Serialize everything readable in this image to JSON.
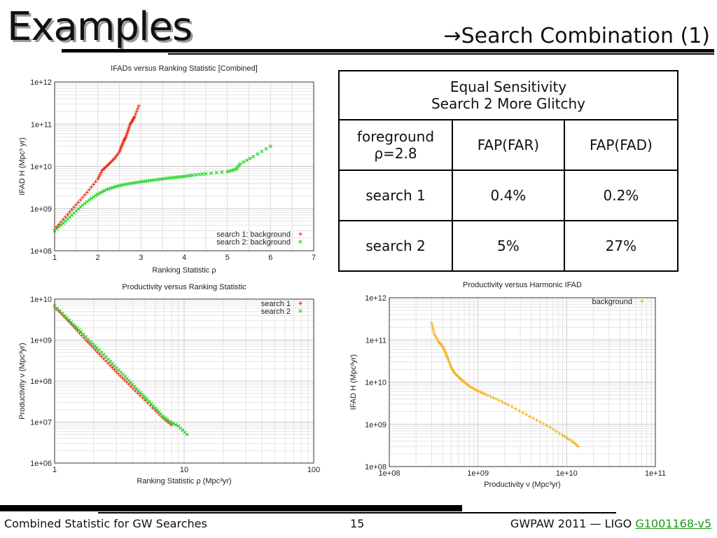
{
  "header": {
    "title": "Examples",
    "subtitle": "→Search Combination (1)"
  },
  "table": {
    "heading_line1": "Equal Sensitivity",
    "heading_line2": "Search 2 More Glitchy",
    "row_header_line1": "foreground",
    "row_header_line2": "ρ=2.8",
    "col1": "FAP(FAR)",
    "col2": "FAP(FAD)",
    "rows": [
      {
        "label": "search 1",
        "far": "0.4%",
        "fad": "0.2%"
      },
      {
        "label": "search 2",
        "far": "5%",
        "fad": "27%"
      }
    ]
  },
  "footer": {
    "left": "Combined Statistic for GW Searches",
    "page": "15",
    "right": "GWPAW 2011 — LIGO ",
    "link": "G1001168-v5"
  },
  "colors": {
    "search1": "#e8321e",
    "search2": "#22d422",
    "background": "#f5b11a"
  },
  "chart_data": [
    {
      "type": "scatter",
      "title": "IFADs versus Ranking Statistic [Combined]",
      "xlabel": "Ranking Statistic ρ",
      "ylabel": "IFAD H (Mpc³ yr)",
      "xlim": [
        1,
        7
      ],
      "ylim": [
        100000000.0,
        1000000000000.0
      ],
      "yscale": "log",
      "grid": true,
      "legend": "bottom-right",
      "x_ticks": [
        "1",
        "2",
        "3",
        "4",
        "5",
        "6",
        "7"
      ],
      "y_ticks": [
        "1e+08",
        "1e+09",
        "1e+10",
        "1e+11",
        "1e+12"
      ],
      "series": [
        {
          "name": "search 1: background",
          "marker": "+",
          "x": [
            1.0,
            1.2,
            1.4,
            1.6,
            1.8,
            2.0,
            2.1,
            2.2,
            2.3,
            2.4,
            2.5,
            2.55,
            2.6,
            2.65,
            2.7,
            2.75,
            2.8,
            2.85,
            2.95
          ],
          "y": [
            320000000.0,
            550000000.0,
            950000000.0,
            1600000000.0,
            2800000000.0,
            5000000000.0,
            8000000000.0,
            10000000000.0,
            12500000000.0,
            16000000000.0,
            22000000000.0,
            30000000000.0,
            40000000000.0,
            50000000000.0,
            70000000000.0,
            100000000000.0,
            120000000000.0,
            150000000000.0,
            270000000000.0
          ]
        },
        {
          "name": "search 2: background",
          "marker": "x",
          "x": [
            1.0,
            1.2,
            1.4,
            1.6,
            1.8,
            2.0,
            2.2,
            2.4,
            2.6,
            2.8,
            3.0,
            3.2,
            3.4,
            3.6,
            3.8,
            4.0,
            4.2,
            4.5,
            5.0,
            5.2,
            5.3,
            5.6,
            6.0
          ],
          "y": [
            300000000.0,
            450000000.0,
            700000000.0,
            1100000000.0,
            1600000000.0,
            2200000000.0,
            2800000000.0,
            3300000000.0,
            3700000000.0,
            4000000000.0,
            4300000000.0,
            4600000000.0,
            4900000000.0,
            5200000000.0,
            5500000000.0,
            5800000000.0,
            6200000000.0,
            6700000000.0,
            7500000000.0,
            8500000000.0,
            11500000000.0,
            17000000000.0,
            30000000000.0
          ]
        }
      ]
    },
    {
      "type": "scatter",
      "title": "Productivity versus Ranking Statistic",
      "xlabel": "Ranking Statistic ρ (Mpc³yr)",
      "ylabel": "Productivity ν (Mpc³yr)",
      "xlim": [
        1,
        100
      ],
      "ylim": [
        1000000.0,
        10000000000.0
      ],
      "xscale": "log",
      "yscale": "log",
      "grid": true,
      "legend": "top-right",
      "x_ticks": [
        "1",
        "10",
        "100"
      ],
      "y_ticks": [
        "1e+06",
        "1e+07",
        "1e+08",
        "1e+09",
        "1e+10"
      ],
      "series": [
        {
          "name": "search 1",
          "marker": "+",
          "x": [
            1.0,
            1.15,
            1.3,
            1.5,
            1.75,
            2.0,
            2.3,
            2.7,
            3.1,
            3.6,
            4.2,
            5.0,
            6.0,
            7.0,
            8.0
          ],
          "y": [
            6500000000.0,
            4200000000.0,
            2800000000.0,
            1700000000.0,
            1000000000.0,
            650000000.0,
            400000000.0,
            240000000.0,
            150000000.0,
            95000000.0,
            58000000.0,
            34000000.0,
            19000000.0,
            12000000.0,
            8500000.0
          ]
        },
        {
          "name": "search 2",
          "marker": "x",
          "x": [
            1.0,
            1.2,
            1.4,
            1.6,
            1.9,
            2.2,
            2.6,
            3.0,
            3.5,
            4.0,
            4.6,
            5.2,
            6.0,
            6.8,
            7.5,
            9.0,
            10.5
          ],
          "y": [
            6800000000.0,
            3900000000.0,
            2400000000.0,
            1600000000.0,
            900000000.0,
            580000000.0,
            340000000.0,
            210000000.0,
            130000000.0,
            82000000.0,
            52000000.0,
            35000000.0,
            22000000.0,
            14000000.0,
            11000000.0,
            8000000.0,
            5000000.0
          ]
        }
      ]
    },
    {
      "type": "scatter",
      "title": "Productivity versus Harmonic IFAD",
      "xlabel": "Productivity ν (Mpc³yr)",
      "ylabel": "IFAD H (Mpc³yr)",
      "xlim": [
        100000000.0,
        100000000000.0
      ],
      "ylim": [
        100000000.0,
        1000000000000.0
      ],
      "xscale": "log",
      "yscale": "log",
      "grid": true,
      "legend": "top-right",
      "x_ticks": [
        "1e+08",
        "1e+09",
        "1e+10",
        "1e+11"
      ],
      "y_ticks": [
        "1e+08",
        "1e+09",
        "1e+10",
        "1e+11",
        "1e+12"
      ],
      "series": [
        {
          "name": "background",
          "marker": "+",
          "x": [
            300000000.0,
            320000000.0,
            360000000.0,
            400000000.0,
            430000000.0,
            460000000.0,
            500000000.0,
            550000000.0,
            620000000.0,
            700000000.0,
            800000000.0,
            950000000.0,
            1200000000.0,
            1600000000.0,
            2200000000.0,
            3200000000.0,
            4600000000.0,
            6500000000.0,
            9000000000.0,
            11500000000.0,
            13500000000.0
          ],
          "y": [
            250000000000.0,
            140000000000.0,
            90000000000.0,
            70000000000.0,
            50000000000.0,
            35000000000.0,
            22000000000.0,
            16000000000.0,
            12500000000.0,
            10000000000.0,
            8000000000.0,
            6500000000.0,
            5200000000.0,
            4000000000.0,
            2900000000.0,
            1900000000.0,
            1250000000.0,
            850000000.0,
            550000000.0,
            400000000.0,
            300000000.0
          ]
        }
      ]
    }
  ]
}
